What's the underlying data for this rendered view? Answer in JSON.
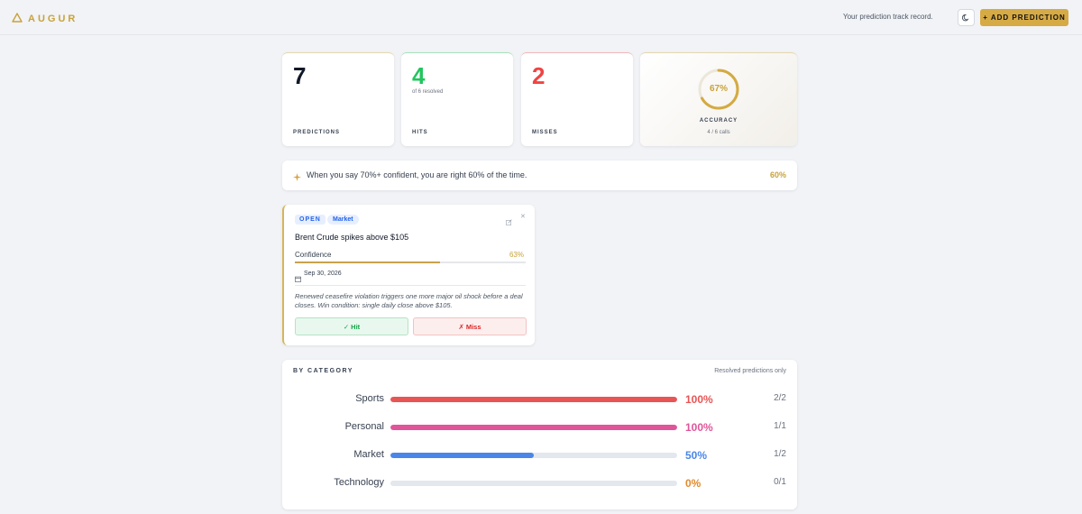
{
  "header": {
    "brand": "AUGUR",
    "tagline": "Your prediction track record.",
    "add_button": "+ ADD PREDICTION",
    "brand_color": "#c9a23b"
  },
  "stats": {
    "predictions": {
      "value": "7",
      "label": "PREDICTIONS"
    },
    "hits": {
      "value": "4",
      "sub": "of 6 resolved",
      "label": "HITS",
      "color": "#22c55e"
    },
    "misses": {
      "value": "2",
      "label": "MISSES",
      "color": "#ef4444"
    },
    "accuracy": {
      "value": "67%",
      "fraction": 0.67,
      "label": "ACCURACY",
      "sub": "4 / 6 calls"
    }
  },
  "insight": {
    "text": "When you say 70%+ confident, you are right 60% of the time.",
    "value": "60%"
  },
  "prediction": {
    "status": "OPEN",
    "category": "Market",
    "title": "Brent Crude spikes above $105",
    "confidence_label": "Confidence",
    "confidence_value": "63%",
    "confidence": 0.63,
    "date": "Sep 30, 2026",
    "note": "Renewed ceasefire violation triggers one more major oil shock before a deal closes. Win condition: single daily close above $105.",
    "hit_label": "✓ Hit",
    "miss_label": "✗ Miss"
  },
  "by_category": {
    "title": "BY CATEGORY",
    "note": "Resolved predictions only",
    "rows": [
      {
        "name": "Sports",
        "pct": "100%",
        "fraction": 1.0,
        "count": "2/2",
        "color": "#e85555"
      },
      {
        "name": "Personal",
        "pct": "100%",
        "fraction": 1.0,
        "count": "1/1",
        "color": "#e0559a"
      },
      {
        "name": "Market",
        "pct": "50%",
        "fraction": 0.5,
        "count": "1/2",
        "color": "#4a86e8"
      },
      {
        "name": "Technology",
        "pct": "0%",
        "fraction": 0.0,
        "count": "0/1",
        "color": "#e08a2e"
      }
    ]
  }
}
